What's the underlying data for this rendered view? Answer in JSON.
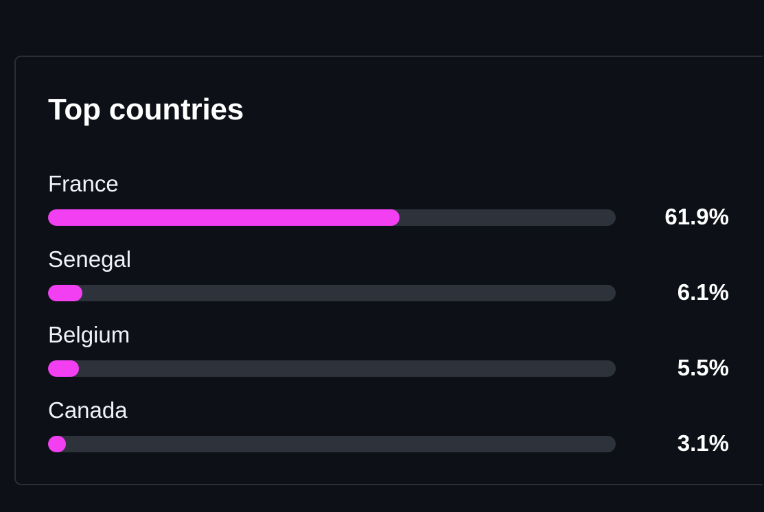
{
  "card": {
    "title": "Top countries"
  },
  "colors": {
    "bar_fill": "#f23ff2",
    "bar_track": "#2d323b",
    "background": "#0d1117"
  },
  "countries": [
    {
      "name": "France",
      "value_label": "61.9%",
      "percent": 61.9
    },
    {
      "name": "Senegal",
      "value_label": "6.1%",
      "percent": 6.1
    },
    {
      "name": "Belgium",
      "value_label": "5.5%",
      "percent": 5.5
    },
    {
      "name": "Canada",
      "value_label": "3.1%",
      "percent": 3.1
    }
  ]
}
